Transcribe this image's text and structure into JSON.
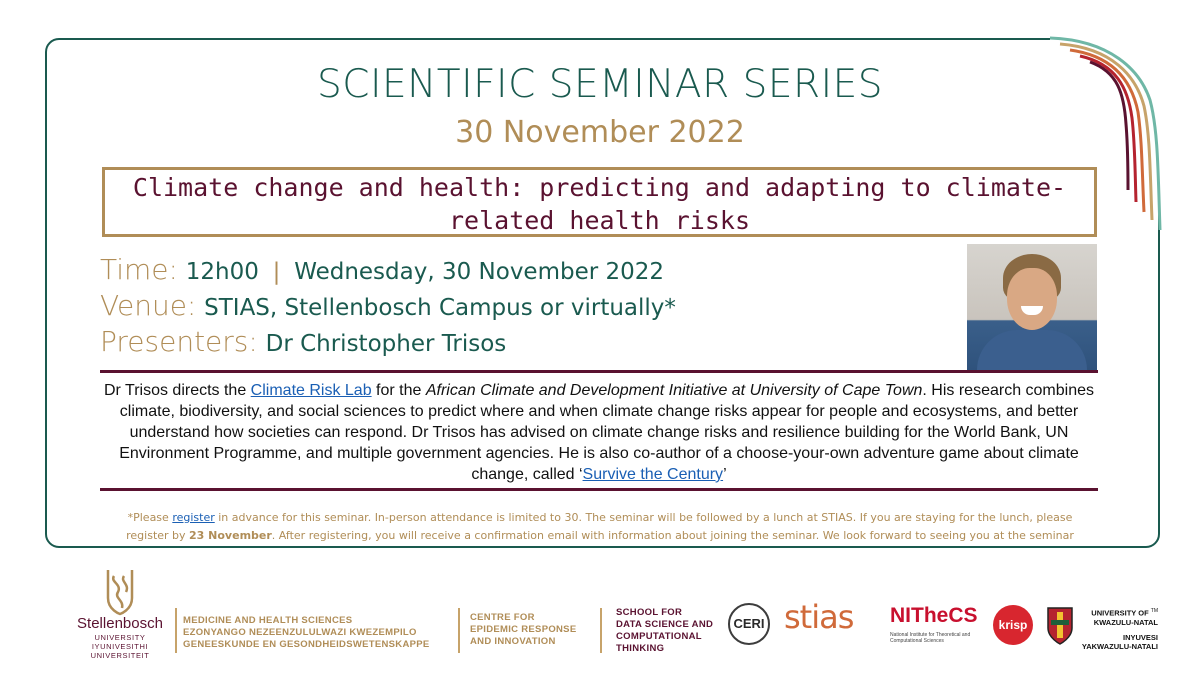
{
  "header": {
    "title": "SCIENTIFIC SEMINAR SERIES",
    "date": "30 November 2022"
  },
  "topic": "Climate change and health: predicting and adapting to climate-related health risks",
  "details": {
    "time_label": "Time:",
    "time_value": "12h00",
    "separator": "|",
    "day_value": "Wednesday, 30 November 2022",
    "venue_label": "Venue:",
    "venue_value": "STIAS, Stellenbosch Campus or virtually*",
    "presenters_label": "Presenters:",
    "presenters_value": "Dr Christopher Trisos"
  },
  "bio": {
    "part1": "Dr Trisos directs the ",
    "link1": "Climate Risk Lab",
    "part2": " for the ",
    "italic": "African Climate and Development Initiative at University of Cape Town",
    "part3": ". His research combines climate, biodiversity, and social sciences to predict where and when climate change risks appear for people and ecosystems, and better understand how societies can respond. Dr Trisos has advised on climate change risks and resilience building for the World Bank, UN Environment Programme, and multiple government agencies. He is also co-author of a choose-your-own adventure game about climate change, called ‘",
    "link2": "Survive the Century",
    "part4": "’"
  },
  "note": {
    "part1": "*Please ",
    "link": "register",
    "part2": " in advance for this seminar. In-person attendance is limited to 30. The seminar will be followed by a lunch at STIAS. If you are staying for the lunch, please register by ",
    "bold": "23 November",
    "part3": ". After registering, you will receive a confirmation email with information about joining the seminar. We look forward to seeing you at the seminar"
  },
  "footer": {
    "su_name": "Stellenbosch",
    "su_sub1": "UNIVERSITY",
    "su_sub2": "IYUNIVESITHI",
    "su_sub3": "UNIVERSITEIT",
    "faculty1": "MEDICINE AND HEALTH SCIENCES",
    "faculty2": "EZONYANGO NEZEENZULULWAZI KWEZEMPILO",
    "faculty3": "GENEESKUNDE EN GESONDHEIDSWETENSKAPPE",
    "centre1": "CENTRE FOR",
    "centre2": "EPIDEMIC RESPONSE",
    "centre3": "AND INNOVATION",
    "school1": "SCHOOL FOR",
    "school2": "DATA SCIENCE AND",
    "school3": "COMPUTATIONAL",
    "school4": "THINKING",
    "ceri": "CERI",
    "stias": "stias",
    "nithecs": "NITheCS",
    "nithecs_sub": "National Institute for Theoretical and Computational Sciences",
    "krisp": "krisp",
    "ukzn1": "UNIVERSITY OF",
    "ukzn2": "KWAZULU-NATAL",
    "ukzn3": "INYUVESI",
    "ukzn4": "YAKWAZULU-NATALI",
    "ukzn_tm": "TM"
  },
  "colors": {
    "teal": "#1a5a4f",
    "gold": "#b08d57",
    "maroon": "#5a1230",
    "link": "#1a5fb4"
  }
}
